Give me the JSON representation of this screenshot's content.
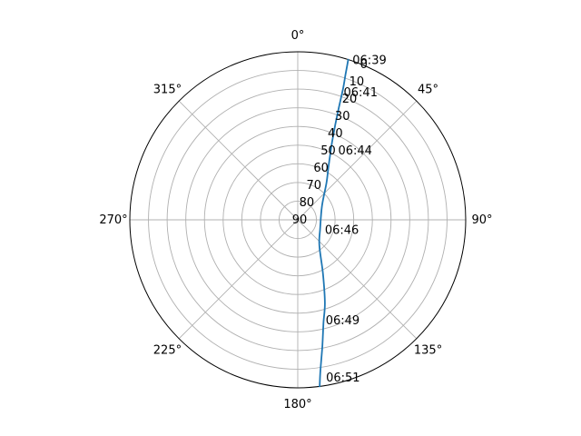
{
  "chart_data": {
    "type": "line",
    "projection": "polar",
    "theta_zero_location": "N",
    "theta_direction": "clockwise",
    "title": "",
    "xlabel": "",
    "ylabel": "",
    "angle_tick_labels": [
      "0°",
      "45°",
      "90°",
      "135°",
      "180°",
      "225°",
      "270°",
      "315°"
    ],
    "angle_ticks_deg": [
      0,
      45,
      90,
      135,
      180,
      225,
      270,
      315
    ],
    "radial_axis": {
      "ticks": [
        0,
        10,
        20,
        30,
        40,
        50,
        60,
        70,
        80,
        90
      ],
      "label_angle_deg": 22.5,
      "inverted": true,
      "range": [
        0,
        90
      ]
    },
    "grid": true,
    "series": [
      {
        "color": "#1f77b4",
        "points": [
          {
            "azimuth": 17.5,
            "elevation": 0
          },
          {
            "azimuth": 18.2,
            "elevation": 8
          },
          {
            "azimuth": 19.0,
            "elevation": 15
          },
          {
            "azimuth": 20.0,
            "elevation": 25
          },
          {
            "azimuth": 21.5,
            "elevation": 35
          },
          {
            "azimuth": 24.0,
            "elevation": 45
          },
          {
            "azimuth": 30.0,
            "elevation": 57
          },
          {
            "azimuth": 38.0,
            "elevation": 65
          },
          {
            "azimuth": 60.0,
            "elevation": 75
          },
          {
            "azimuth": 113.0,
            "elevation": 77
          },
          {
            "azimuth": 140.0,
            "elevation": 72
          },
          {
            "azimuth": 155.0,
            "elevation": 58
          },
          {
            "azimuth": 162.0,
            "elevation": 43
          },
          {
            "azimuth": 166.0,
            "elevation": 33
          },
          {
            "azimuth": 169.0,
            "elevation": 21
          },
          {
            "azimuth": 171.5,
            "elevation": 8
          },
          {
            "azimuth": 172.5,
            "elevation": 0
          }
        ]
      }
    ],
    "time_labels": [
      {
        "text": "06:39",
        "azimuth": 17.3,
        "elevation": 0
      },
      {
        "text": "06:41",
        "azimuth": 17.8,
        "elevation": 18
      },
      {
        "text": "06:44",
        "azimuth": 27.0,
        "elevation": 48
      },
      {
        "text": "06:46",
        "azimuth": 113.0,
        "elevation": 77
      },
      {
        "text": "06:49",
        "azimuth": 167.0,
        "elevation": 35
      },
      {
        "text": "06:51",
        "azimuth": 171.5,
        "elevation": 5
      }
    ]
  }
}
